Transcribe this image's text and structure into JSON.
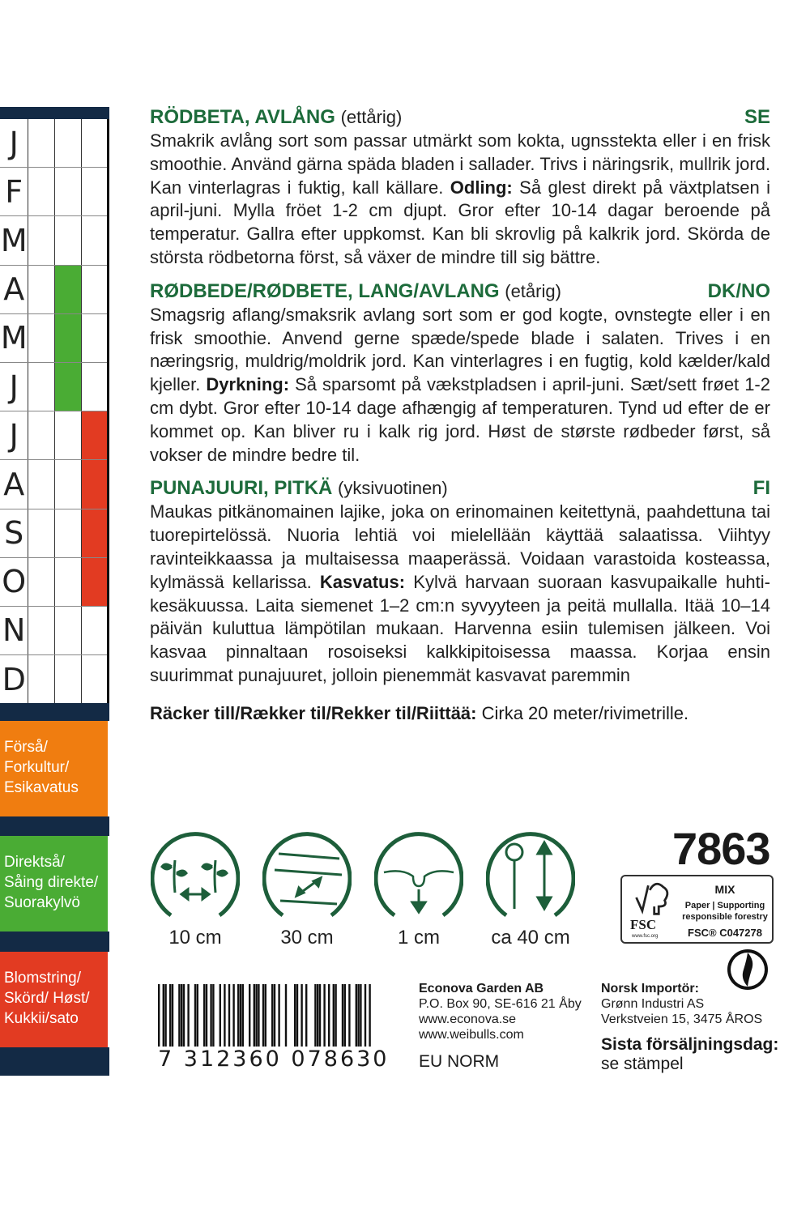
{
  "calendar": {
    "months": [
      "J",
      "F",
      "M",
      "A",
      "M",
      "J",
      "J",
      "A",
      "S",
      "O",
      "N",
      "D"
    ],
    "sowing_direct_months": [
      "A",
      "M",
      "J"
    ],
    "harvest_months": [
      "J",
      "A",
      "S",
      "O"
    ],
    "colors": {
      "navy": "#132a45",
      "pre": "#f07d10",
      "direct": "#4aac34",
      "harvest": "#e23b22"
    }
  },
  "legend": {
    "pre": "Förså/ Forkultur/ Esikavatus",
    "direct": "Direktså/ Såing direkte/ Suorakylvö",
    "harvest": "Blomstring/ Skörd/ Høst/ Kukkii/sato"
  },
  "sections": [
    {
      "title": "RÖDBETA, AVLÅNG",
      "sub": "(ettårig)",
      "lang": "SE",
      "text1": "Smakrik avlång sort som passar utmärkt som kokta, ugnsstekta eller i en frisk smoothie. Använd gärna späda bladen i sallader. Trivs i näringsrik, mullrik jord. Kan vinterlagras i fuktig, kall källare. ",
      "bold": "Odling:",
      "text2": " Så glest direkt på växtplatsen i april-juni. Mylla fröet 1-2 cm djupt. Gror efter 10-14 dagar beroende på temperatur. Gallra efter uppkomst. Kan bli skrovlig på kalkrik jord. Skörda de största rödbetorna först, så växer de mindre till sig bättre."
    },
    {
      "title": "RØDBEDE/RØDBETE, LANG/AVLANG",
      "sub": "(etårig)",
      "lang": "DK/NO",
      "text1": "Smagsrig aflang/smaksrik avlang sort som er god kogte, ovnstegte eller i en frisk smoothie. Anvend gerne spæde/spede blade i salaten. Trives i en næringsrig, muldrig/moldrik jord. Kan vinterlagres i en fugtig, kold kælder/kald kjeller. ",
      "bold": "Dyrkning:",
      "text2": " Så sparsomt på vækstpladsen i april-juni. Sæt/sett frøet 1-2 cm dybt. Gror efter 10-14 dage afhængig af temperaturen. Tynd ud efter de er kommet op. Kan bliver ru i kalk rig jord. Høst de største rødbeder først, så vokser de mindre bedre til."
    },
    {
      "title": "PUNAJUURI, PITKÄ",
      "sub": "(yksivuotinen)",
      "lang": "FI",
      "text1": "Maukas pitkänomainen lajike, joka on erinomainen keitettynä, paahdettuna tai tuorepirtelössä. Nuoria lehtiä voi mielellään käyttää salaatissa. Viihtyy ravinteikkaassa ja multaisessa maaperässä. Voidaan varastoida kosteassa, kylmässä kellarissa. ",
      "bold": "Kasvatus:",
      "text2": " Kylvä harvaan suoraan kasvupaikalle huhti-kesäkuussa. Laita siemenet 1–2 cm:n syvyyteen ja peitä mullalla. Itää 10–14 päivän kuluttua lämpötilan mukaan. Harvenna esiin tulemisen jälkeen. Voi kasvaa pinnaltaan rosoiseksi kalkkipitoisessa maassa. Korjaa ensin suurimmat punajuuret, jolloin pienemmät kasvavat paremmin"
    }
  ],
  "coverage": {
    "label": "Räcker till/Rækker til/Rekker til/Riittää:",
    "value": " Cirka 20 meter/rivimetrille."
  },
  "icons": [
    {
      "name": "plant-spacing-icon",
      "label": "10 cm"
    },
    {
      "name": "row-spacing-icon",
      "label": "30 cm"
    },
    {
      "name": "sowing-depth-icon",
      "label": "1 cm"
    },
    {
      "name": "plant-height-icon",
      "label": "ca 40 cm"
    }
  ],
  "article_number": "7863",
  "fsc": {
    "brand": "FSC",
    "url": "www.fsc.org",
    "mix": "MIX",
    "line1": "Paper | Supporting",
    "line2": "responsible forestry",
    "code": "FSC® C047278"
  },
  "barcode": "7 312360 078630",
  "company": {
    "name": "Econova Garden AB",
    "address": "P.O. Box 90, SE-616 21 Åby",
    "web1": "www.econova.se",
    "web2": "www.weibulls.com",
    "norm": "EU NORM"
  },
  "importer": {
    "label": "Norsk Importör:",
    "name": "Grønn Industri AS",
    "address": "Verkstveien 15, 3475 ÅROS"
  },
  "last_sale": {
    "label": "Sista försäljningsdag:",
    "value": "se stämpel"
  }
}
